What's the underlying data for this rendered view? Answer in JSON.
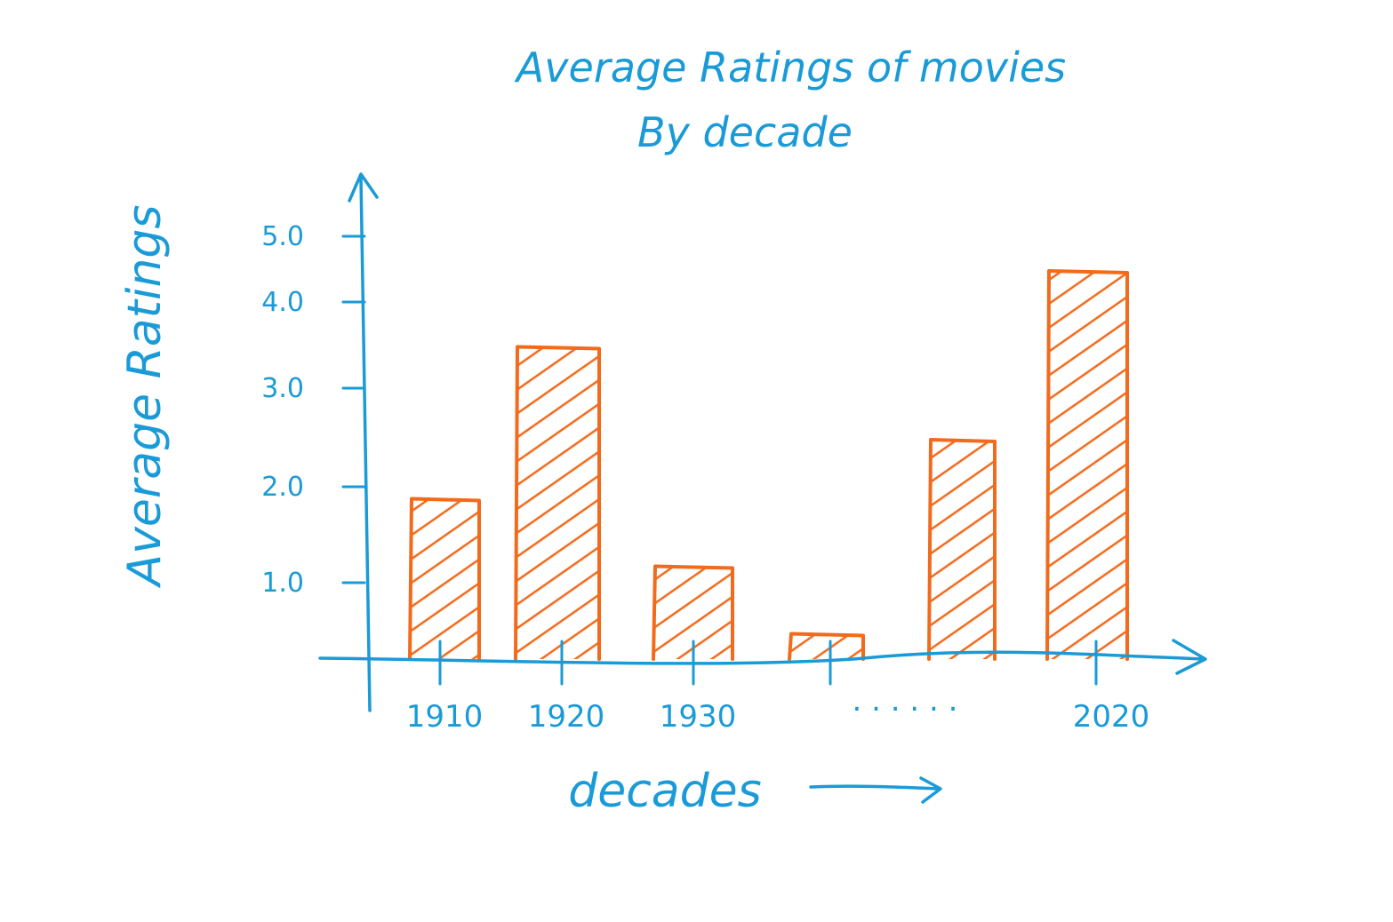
{
  "colors": {
    "ink": "#1a9bd7",
    "bar": "#f26a1b"
  },
  "chart_data": {
    "type": "bar",
    "title_line1": "Average Ratings of movies",
    "title_line2": "By decade",
    "xlabel": "decades",
    "ylabel": "Average Ratings",
    "yticks": [
      "1.0",
      "2.0",
      "3.0",
      "4.0",
      "5.0"
    ],
    "ylim": [
      0,
      5.5
    ],
    "categories": [
      "1910",
      "1920",
      "1930",
      "",
      "",
      "2020"
    ],
    "ellipsis_label": ". . . . . .",
    "values": [
      1.9,
      3.7,
      1.1,
      0.3,
      2.6,
      4.6
    ],
    "hatched": true,
    "grid": false,
    "x_arrow": true,
    "y_arrow": true
  }
}
